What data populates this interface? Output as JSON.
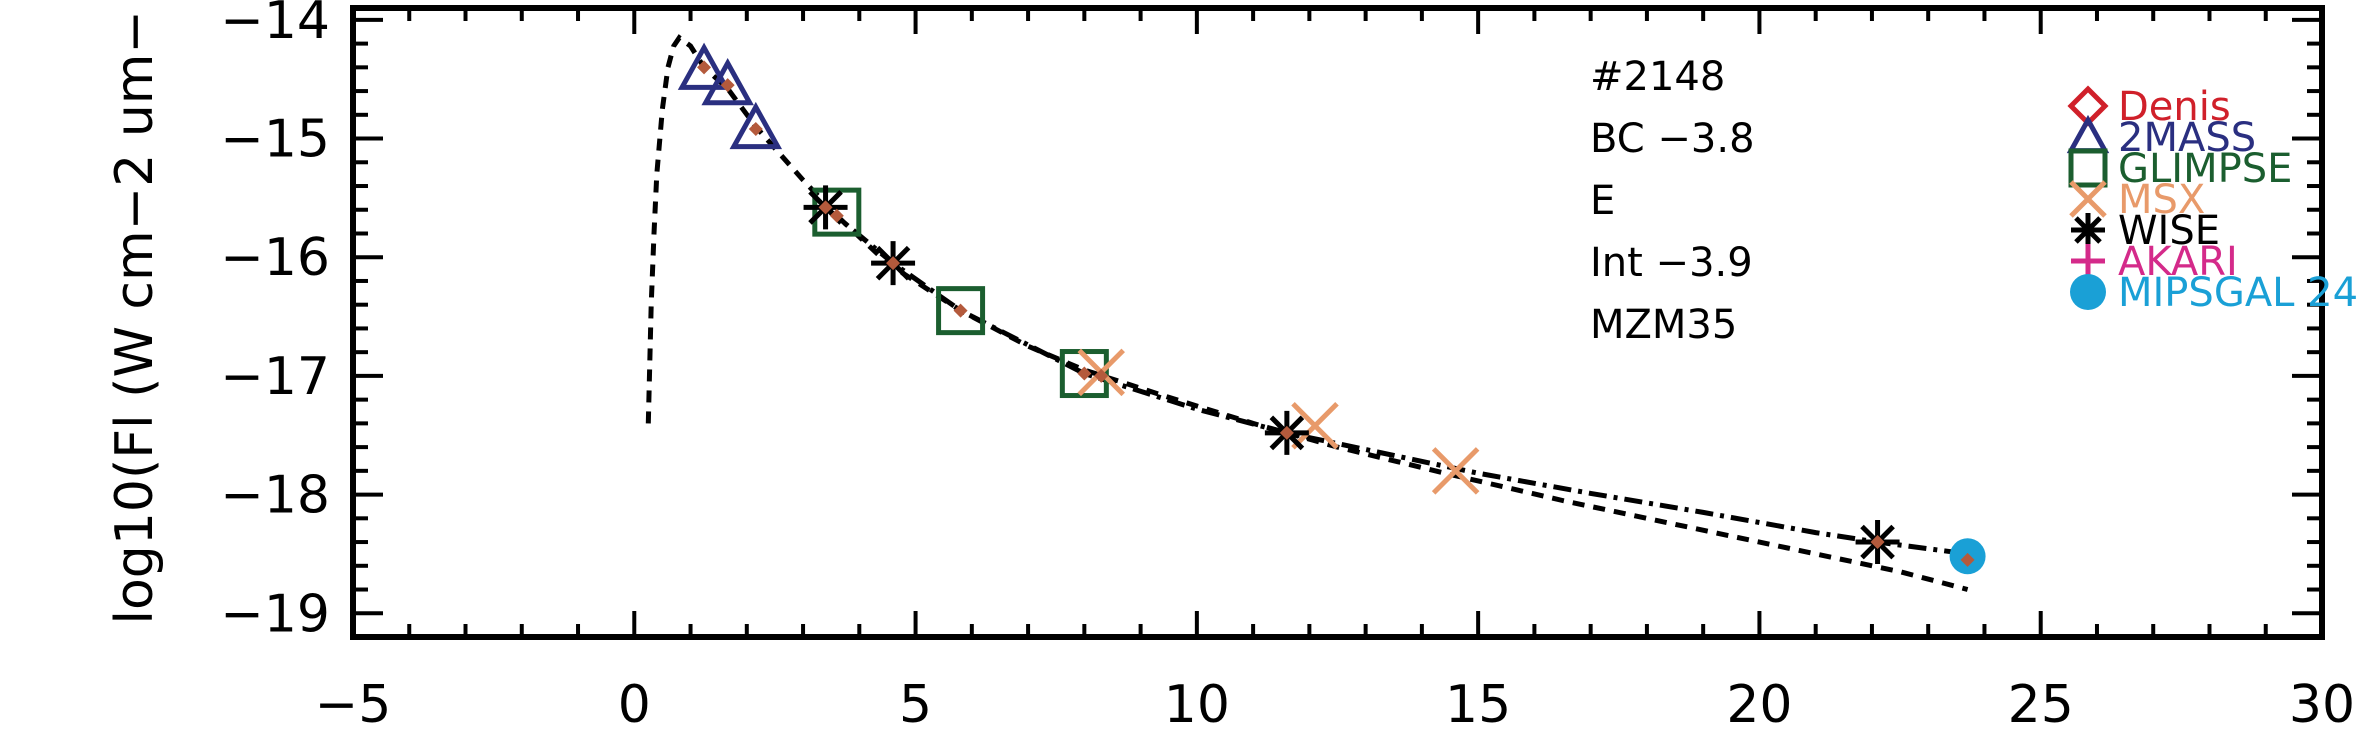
{
  "chart_data": {
    "type": "scatter",
    "title": "",
    "xlabel": "",
    "ylabel": "log10(Fl (W cm−2 um−",
    "xlim": [
      -5,
      30
    ],
    "ylim": [
      -19.2,
      -13.9
    ],
    "x_ticks": [
      -5,
      0,
      5,
      10,
      15,
      20,
      25,
      30
    ],
    "x_tick_labels": [
      "−5",
      "0",
      "5",
      "10",
      "15",
      "20",
      "25",
      "30"
    ],
    "y_ticks": [
      -19,
      -18,
      -17,
      -16,
      -15,
      -14
    ],
    "y_tick_labels": [
      "−19",
      "−18",
      "−17",
      "−16",
      "−15",
      "−14"
    ],
    "annotations": [
      "#2148",
      "BC −3.8",
      "E",
      "Int −3.9",
      "MZM35"
    ],
    "legend_placement": "top-right",
    "series": [
      {
        "name": "Denis",
        "marker": "diamond",
        "color": "#d0202a",
        "x": [],
        "y": []
      },
      {
        "name": "2MASS",
        "marker": "triangle",
        "color": "#2a2f80",
        "x": [
          1.24,
          1.66,
          2.16
        ],
        "y": [
          -14.42,
          -14.55,
          -14.92
        ]
      },
      {
        "name": "GLIMPSE",
        "marker": "square",
        "color": "#1b5e2f",
        "x": [
          3.6,
          5.8,
          8.0
        ],
        "y": [
          -15.62,
          -16.45,
          -16.98
        ]
      },
      {
        "name": "MSX",
        "marker": "x",
        "color": "#e89a6a",
        "x": [
          8.3,
          12.1,
          14.6
        ],
        "y": [
          -16.97,
          -17.42,
          -17.8
        ]
      },
      {
        "name": "WISE",
        "marker": "asterisk",
        "color": "#000000",
        "x": [
          3.4,
          4.6,
          11.6,
          22.1
        ],
        "y": [
          -15.58,
          -16.05,
          -17.48,
          -18.4
        ]
      },
      {
        "name": "AKARI",
        "marker": "plus",
        "color": "#d42a8a",
        "x": [],
        "y": []
      },
      {
        "name": "MIPSGAL 24",
        "marker": "filled-circle",
        "color": "#1aa0d6",
        "x": [
          23.7
        ],
        "y": [
          -18.52
        ]
      }
    ],
    "model_points": {
      "color": "#b45a3c",
      "x": [
        1.24,
        1.66,
        2.16,
        3.4,
        3.6,
        4.6,
        5.8,
        8.0,
        8.3,
        11.6,
        22.1,
        23.7
      ],
      "y": [
        -14.4,
        -14.55,
        -14.92,
        -15.58,
        -15.65,
        -16.05,
        -16.45,
        -16.98,
        -17.0,
        -17.48,
        -18.4,
        -18.55
      ]
    },
    "curves": [
      {
        "style": "dashed",
        "x": [
          0.25,
          0.3,
          0.35,
          0.4,
          0.5,
          0.6,
          0.7,
          0.8,
          1.0,
          1.24,
          1.66,
          2.16,
          3.0,
          3.6,
          4.5,
          5.8,
          7.0,
          8.0,
          9.5,
          11.0,
          12.5,
          14.5,
          16.5,
          18.5,
          20.5,
          22.5,
          23.7
        ],
        "y": [
          -17.4,
          -16.4,
          -15.8,
          -15.3,
          -14.75,
          -14.4,
          -14.22,
          -14.15,
          -14.22,
          -14.4,
          -14.58,
          -14.9,
          -15.35,
          -15.65,
          -16.05,
          -16.45,
          -16.75,
          -16.95,
          -17.18,
          -17.4,
          -17.6,
          -17.83,
          -18.05,
          -18.25,
          -18.45,
          -18.65,
          -18.8
        ]
      },
      {
        "style": "dash-dot",
        "x": [
          3.4,
          4.6,
          5.8,
          8.0,
          10.0,
          11.6,
          13.0,
          15.0,
          17.0,
          19.0,
          21.0,
          22.1,
          23.7
        ],
        "y": [
          -15.58,
          -16.05,
          -16.45,
          -16.98,
          -17.28,
          -17.48,
          -17.62,
          -17.82,
          -17.99,
          -18.15,
          -18.32,
          -18.4,
          -18.5
        ]
      }
    ]
  }
}
